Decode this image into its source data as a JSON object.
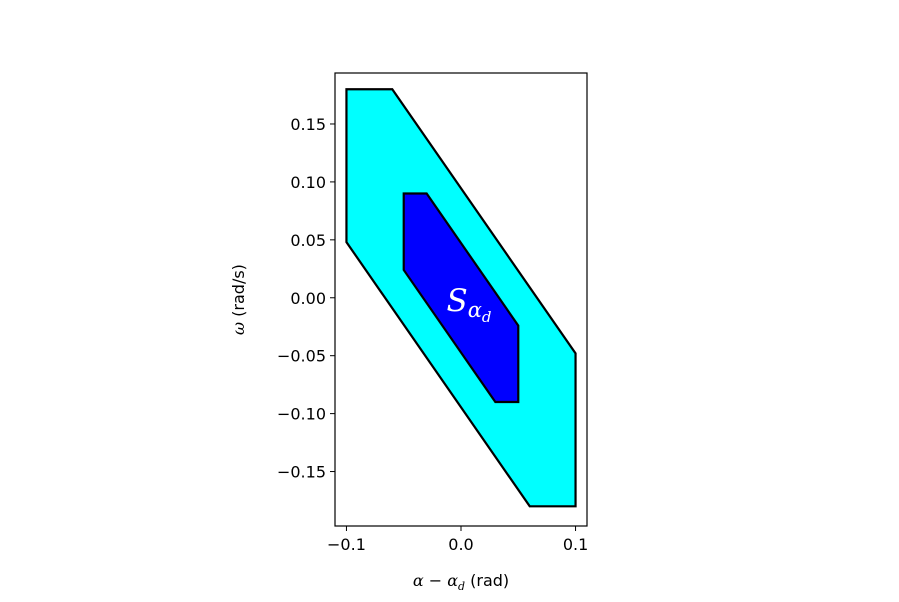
{
  "chart_data": {
    "type": "area",
    "xlim": [
      -0.11,
      0.11
    ],
    "ylim": [
      -0.197,
      0.194
    ],
    "x_ticks": [
      -0.1,
      0.0,
      0.1
    ],
    "x_tick_labels": [
      "−0.1",
      "0.0",
      "0.1"
    ],
    "y_ticks": [
      0.15,
      0.1,
      0.05,
      0.0,
      -0.05,
      -0.1,
      -0.15
    ],
    "y_tick_labels": [
      "0.15",
      "0.10",
      "0.05",
      "0.00",
      "−0.05",
      "−0.10",
      "−0.15"
    ],
    "xlabel": {
      "main": "α − α",
      "sub": "d",
      "unit": " (rad)"
    },
    "ylabel": "ω (rad/s)",
    "grid": false,
    "series": [
      {
        "fill": "#00ffff",
        "stroke": "#000000",
        "points": [
          [
            -0.1,
            0.18
          ],
          [
            -0.06,
            0.18
          ],
          [
            0.1,
            -0.048
          ],
          [
            0.1,
            -0.18
          ],
          [
            0.06,
            -0.18
          ],
          [
            -0.1,
            0.048
          ]
        ]
      },
      {
        "fill": "#0000ff",
        "stroke": "#000000",
        "points": [
          [
            -0.05,
            0.09
          ],
          [
            -0.03,
            0.09
          ],
          [
            0.05,
            -0.024
          ],
          [
            0.05,
            -0.09
          ],
          [
            0.03,
            -0.09
          ],
          [
            -0.05,
            0.024
          ]
        ]
      }
    ],
    "annotations": [
      {
        "main": "S",
        "sub": "α",
        "subsub": "d",
        "x": 0.007,
        "y": -0.003,
        "color": "#ffffff"
      }
    ]
  }
}
